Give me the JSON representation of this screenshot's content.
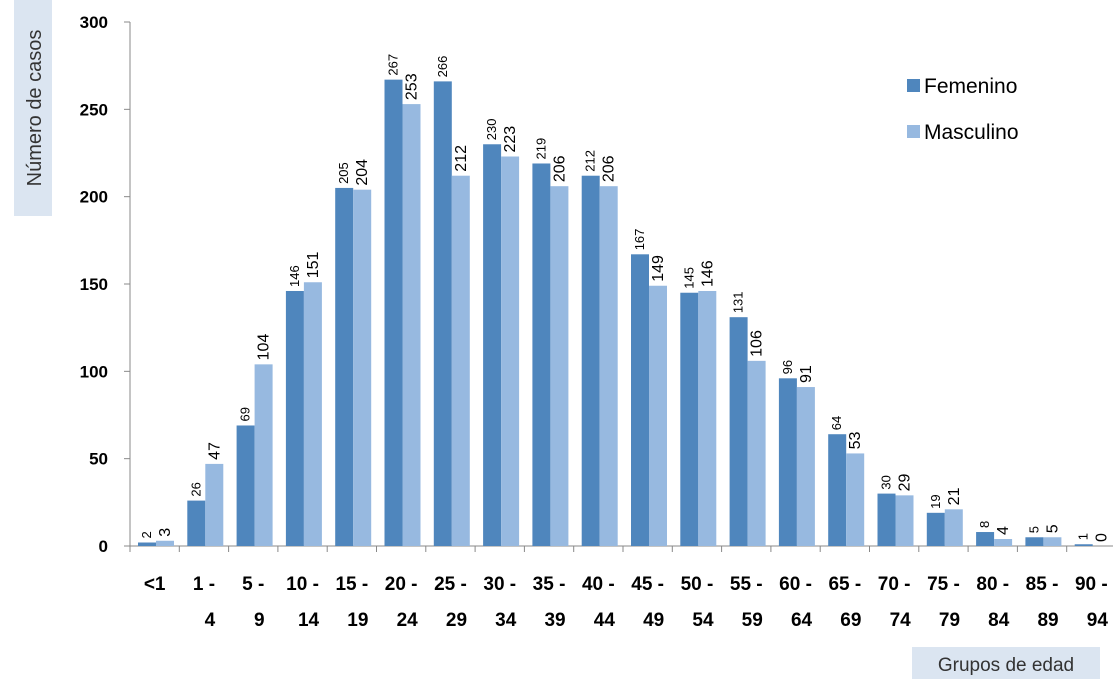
{
  "chart_data": {
    "type": "bar",
    "title": "",
    "ylabel": "Número de casos",
    "xlabel": "Grupos de edad",
    "ylim": [
      0,
      300
    ],
    "yticks": [
      0,
      50,
      100,
      150,
      200,
      250,
      300
    ],
    "legend_position": "top-right",
    "categories": [
      [
        "<1",
        ""
      ],
      [
        "1 -",
        "4"
      ],
      [
        "5 -",
        "9"
      ],
      [
        "10 -",
        "14"
      ],
      [
        "15 -",
        "19"
      ],
      [
        "20 -",
        "24"
      ],
      [
        "25 -",
        "29"
      ],
      [
        "30 -",
        "34"
      ],
      [
        "35 -",
        "39"
      ],
      [
        "40 -",
        "44"
      ],
      [
        "45 -",
        "49"
      ],
      [
        "50 -",
        "54"
      ],
      [
        "55 -",
        "59"
      ],
      [
        "60 -",
        "64"
      ],
      [
        "65 -",
        "69"
      ],
      [
        "70 -",
        "74"
      ],
      [
        "75 -",
        "79"
      ],
      [
        "80 -",
        "84"
      ],
      [
        "85 -",
        "89"
      ],
      [
        "90 -",
        "94"
      ]
    ],
    "series": [
      {
        "name": "Femenino",
        "color": "#4f86bd",
        "values": [
          2,
          26,
          69,
          146,
          205,
          267,
          266,
          230,
          219,
          212,
          167,
          145,
          131,
          96,
          64,
          30,
          19,
          8,
          5,
          1
        ]
      },
      {
        "name": "Masculino",
        "color": "#97b9e0",
        "values": [
          3,
          47,
          104,
          151,
          204,
          253,
          212,
          223,
          206,
          206,
          149,
          146,
          106,
          91,
          53,
          29,
          21,
          4,
          5,
          0
        ]
      }
    ]
  }
}
